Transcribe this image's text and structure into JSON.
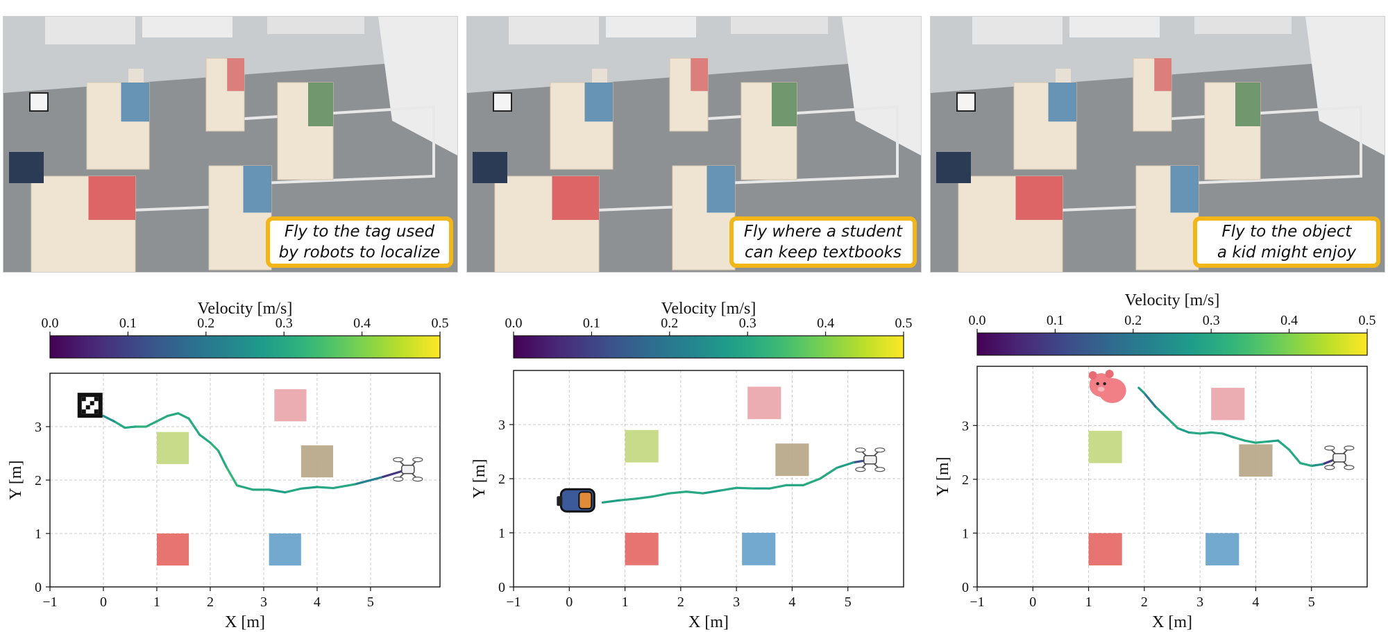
{
  "colorbar": {
    "label": "Velocity [m/s]",
    "ticks": [
      "0.0",
      "0.1",
      "0.2",
      "0.3",
      "0.4",
      "0.5"
    ],
    "range": [
      0.0,
      0.5
    ],
    "colormap": "viridis"
  },
  "chart_data": [
    {
      "type": "line",
      "instruction": "Fly to the tag used\nby robots to localize",
      "target": "apriltag-icon",
      "start": "drone-icon",
      "xlabel": "X [m]",
      "ylabel": "Y [m]",
      "xlim": [
        -1,
        6.3
      ],
      "ylim": [
        0,
        4.0
      ],
      "xticks": [
        "−1",
        "0",
        "1",
        "2",
        "3",
        "4",
        "5"
      ],
      "yticks": [
        "0",
        "1",
        "2",
        "3"
      ],
      "grid": true,
      "target_xy": [
        -0.25,
        3.4
      ],
      "start_xy": [
        5.7,
        2.2
      ],
      "trajectory": {
        "x": [
          5.7,
          5.2,
          4.7,
          4.3,
          4.0,
          3.7,
          3.4,
          3.1,
          2.8,
          2.5,
          2.3,
          2.15,
          2.0,
          1.8,
          1.6,
          1.4,
          1.2,
          1.0,
          0.8,
          0.6,
          0.4,
          0.2,
          0.0
        ],
        "y": [
          2.2,
          2.05,
          1.92,
          1.85,
          1.87,
          1.84,
          1.77,
          1.82,
          1.82,
          1.9,
          2.25,
          2.55,
          2.7,
          2.85,
          3.15,
          3.25,
          3.2,
          3.1,
          3.0,
          3.0,
          2.98,
          3.1,
          3.2
        ],
        "speed": [
          0.08,
          0.22,
          0.3,
          0.3,
          0.28,
          0.3,
          0.28,
          0.3,
          0.3,
          0.33,
          0.3,
          0.32,
          0.3,
          0.3,
          0.3,
          0.3,
          0.3,
          0.3,
          0.32,
          0.3,
          0.3,
          0.25,
          0.15
        ]
      },
      "obstacles": [
        {
          "x": [
            1.0,
            1.6
          ],
          "y": [
            2.3,
            2.9
          ],
          "color": "#c5d985"
        },
        {
          "x": [
            3.2,
            3.8
          ],
          "y": [
            3.1,
            3.7
          ],
          "color": "#eba9ae"
        },
        {
          "x": [
            3.7,
            4.3
          ],
          "y": [
            2.05,
            2.65
          ],
          "color": "#b9a98b"
        },
        {
          "x": [
            1.0,
            1.6
          ],
          "y": [
            0.4,
            1.0
          ],
          "color": "#e66d68"
        },
        {
          "x": [
            3.1,
            3.7
          ],
          "y": [
            0.4,
            1.0
          ],
          "color": "#6ba3cc"
        }
      ]
    },
    {
      "type": "line",
      "instruction": "Fly where a student\ncan keep textbooks",
      "target": "backpack-icon",
      "start": "drone-icon",
      "xlabel": "X [m]",
      "ylabel": "Y [m]",
      "xlim": [
        -1,
        6.0
      ],
      "ylim": [
        0,
        4.0
      ],
      "xticks": [
        "−1",
        "0",
        "1",
        "2",
        "3",
        "4",
        "5"
      ],
      "yticks": [
        "0",
        "1",
        "2",
        "3"
      ],
      "grid": true,
      "target_xy": [
        0.15,
        1.6
      ],
      "start_xy": [
        5.4,
        2.35
      ],
      "trajectory": {
        "x": [
          5.4,
          5.1,
          4.8,
          4.5,
          4.2,
          3.9,
          3.6,
          3.3,
          3.0,
          2.7,
          2.4,
          2.1,
          1.8,
          1.5,
          1.2,
          0.9,
          0.6
        ],
        "y": [
          2.35,
          2.3,
          2.2,
          2.0,
          1.88,
          1.88,
          1.82,
          1.82,
          1.83,
          1.78,
          1.73,
          1.76,
          1.73,
          1.67,
          1.63,
          1.6,
          1.56
        ],
        "speed": [
          0.12,
          0.28,
          0.3,
          0.3,
          0.3,
          0.3,
          0.28,
          0.3,
          0.3,
          0.28,
          0.3,
          0.3,
          0.3,
          0.3,
          0.3,
          0.28,
          0.18
        ]
      },
      "obstacles": [
        {
          "x": [
            1.0,
            1.6
          ],
          "y": [
            2.3,
            2.9
          ],
          "color": "#c5d985"
        },
        {
          "x": [
            3.2,
            3.8
          ],
          "y": [
            3.1,
            3.7
          ],
          "color": "#eba9ae"
        },
        {
          "x": [
            3.7,
            4.3
          ],
          "y": [
            2.05,
            2.65
          ],
          "color": "#b9a98b"
        },
        {
          "x": [
            1.0,
            1.6
          ],
          "y": [
            0.4,
            1.0
          ],
          "color": "#e66d68"
        },
        {
          "x": [
            3.1,
            3.7
          ],
          "y": [
            0.4,
            1.0
          ],
          "color": "#6ba3cc"
        }
      ]
    },
    {
      "type": "line",
      "instruction": "Fly to the object\na kid might enjoy",
      "target": "teddy-bear-icon",
      "start": "drone-icon",
      "xlabel": "X [m]",
      "ylabel": "Y [m]",
      "xlim": [
        -1,
        6.0
      ],
      "ylim": [
        0,
        4.1
      ],
      "xticks": [
        "−1",
        "0",
        "1",
        "2",
        "3",
        "4",
        "5"
      ],
      "yticks": [
        "0",
        "1",
        "2",
        "3"
      ],
      "grid": true,
      "target_xy": [
        1.35,
        3.7
      ],
      "start_xy": [
        5.5,
        2.4
      ],
      "trajectory": {
        "x": [
          5.5,
          5.2,
          5.0,
          4.8,
          4.6,
          4.4,
          4.2,
          4.0,
          3.8,
          3.6,
          3.4,
          3.2,
          3.0,
          2.8,
          2.6,
          2.4,
          2.2,
          2.0,
          1.9
        ],
        "y": [
          2.4,
          2.28,
          2.25,
          2.3,
          2.55,
          2.72,
          2.7,
          2.68,
          2.72,
          2.78,
          2.85,
          2.87,
          2.85,
          2.87,
          2.95,
          3.15,
          3.35,
          3.6,
          3.7
        ],
        "speed": [
          0.08,
          0.25,
          0.3,
          0.3,
          0.3,
          0.28,
          0.3,
          0.3,
          0.3,
          0.28,
          0.3,
          0.3,
          0.3,
          0.28,
          0.3,
          0.28,
          0.2,
          0.28,
          0.2
        ]
      },
      "obstacles": [
        {
          "x": [
            1.0,
            1.6
          ],
          "y": [
            2.3,
            2.9
          ],
          "color": "#c5d985"
        },
        {
          "x": [
            3.2,
            3.8
          ],
          "y": [
            3.1,
            3.7
          ],
          "color": "#eba9ae"
        },
        {
          "x": [
            3.7,
            4.3
          ],
          "y": [
            2.05,
            2.65
          ],
          "color": "#b9a98b"
        },
        {
          "x": [
            1.0,
            1.6
          ],
          "y": [
            0.4,
            1.0
          ],
          "color": "#e66d68"
        },
        {
          "x": [
            3.1,
            3.7
          ],
          "y": [
            0.4,
            1.0
          ],
          "color": "#6ba3cc"
        }
      ]
    }
  ]
}
